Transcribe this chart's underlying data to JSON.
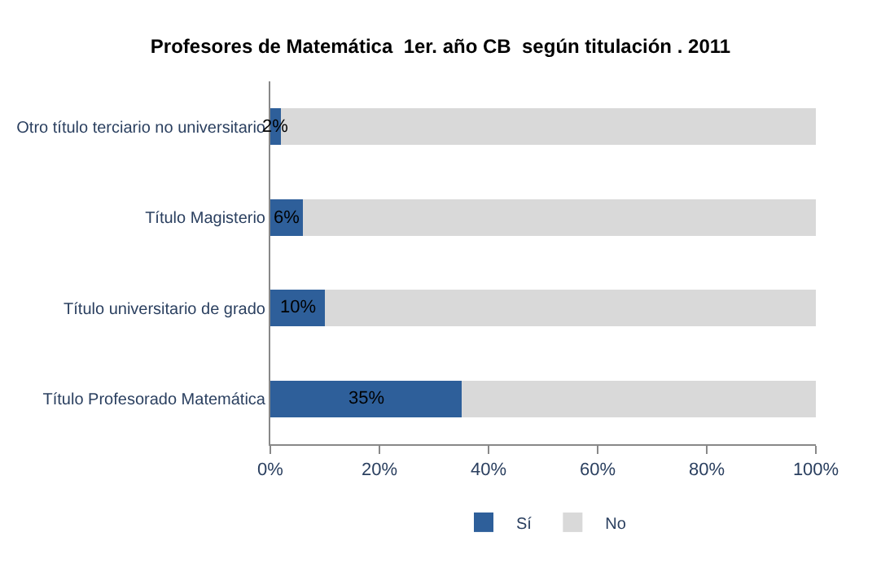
{
  "chart_data": {
    "type": "bar",
    "title": "Profesores de Matemática  1er. año CB  según titulación . 2011",
    "orientation": "horizontal",
    "stacked": true,
    "categories": [
      "Otro título terciario no universitario",
      "Título Magisterio",
      "Título universitario de grado",
      "Título Profesorado Matemática"
    ],
    "series": [
      {
        "name": "Sí",
        "color": "#2e5f9a",
        "values": [
          2,
          6,
          10,
          35
        ],
        "value_labels": [
          "2%",
          "6%",
          "10%",
          "35%"
        ]
      },
      {
        "name": "No",
        "color": "#d9d9d9",
        "values": [
          98,
          94,
          90,
          65
        ]
      }
    ],
    "xlim": [
      0,
      100
    ],
    "xticks": [
      {
        "value": 0,
        "label": "0%"
      },
      {
        "value": 20,
        "label": "20%"
      },
      {
        "value": 40,
        "label": "40%"
      },
      {
        "value": 60,
        "label": "60%"
      },
      {
        "value": 80,
        "label": "80%"
      },
      {
        "value": 100,
        "label": "100%"
      }
    ],
    "legend": "bottom"
  }
}
